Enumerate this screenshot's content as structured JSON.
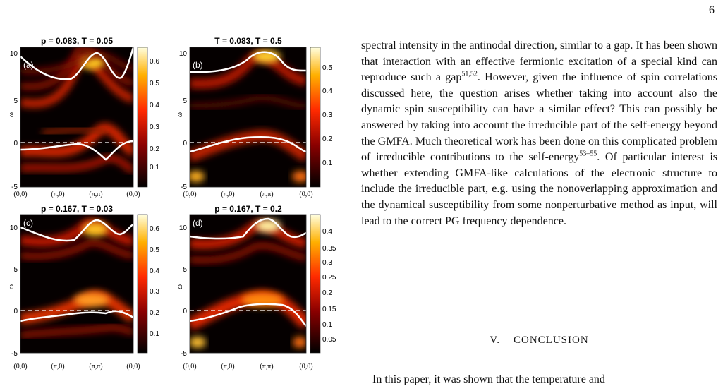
{
  "page_number": "6",
  "figure": {
    "panels": [
      {
        "id": "a",
        "title": "p = 0.083, T = 0.05",
        "label": "(a)",
        "ylabel": "ω",
        "yticks": [
          "10",
          "5",
          "0",
          "-5"
        ],
        "xticks": [
          "(0,0)",
          "(π,0)",
          "(π,π)",
          "(0,0)"
        ],
        "colorbar_ticks": [
          "0.6",
          "0.5",
          "0.4",
          "0.3",
          "0.2",
          "0.1"
        ]
      },
      {
        "id": "b",
        "title": "T = 0.083, T = 0.5",
        "label": "(b)",
        "ylabel": "ω",
        "yticks": [
          "10",
          "5",
          "0",
          "-5"
        ],
        "xticks": [
          "(0,0)",
          "(π,0)",
          "(π,π)",
          "(0,0)"
        ],
        "colorbar_ticks": [
          "0.5",
          "0.4",
          "0.3",
          "0.2",
          "0.1"
        ]
      },
      {
        "id": "c",
        "title": "p = 0.167, T = 0.03",
        "label": "(c)",
        "ylabel": "ω",
        "yticks": [
          "10",
          "5",
          "0",
          "-5"
        ],
        "xticks": [
          "(0,0)",
          "(π,0)",
          "(π,π)",
          "(0,0)"
        ],
        "colorbar_ticks": [
          "0.6",
          "0.5",
          "0.4",
          "0.3",
          "0.2",
          "0.1"
        ]
      },
      {
        "id": "d",
        "title": "p = 0.167, T = 0.2",
        "label": "(d)",
        "ylabel": "ω",
        "yticks": [
          "10",
          "5",
          "0",
          "-5"
        ],
        "xticks": [
          "(0,0)",
          "(π,0)",
          "(π,π)",
          "(0,0)"
        ],
        "colorbar_ticks": [
          "0.4",
          "0.35",
          "0.3",
          "0.25",
          "0.2",
          "0.15",
          "0.1",
          "0.05"
        ]
      }
    ]
  },
  "body": {
    "paragraph_1": "spectral intensity in the antinodal direction, similar to a gap. It has been shown that interaction with an effective fermionic excitation of a special kind can reproduce such a gap",
    "ref_1": "51,52",
    "paragraph_1b": ". However, given the influence of spin correlations discussed here, the question arises whether taking into account also the dynamic spin susceptibility can have a similar effect? This can possibly be answered by taking into account the irreducible part of the self-energy beyond the GMFA. Much theoretical work has been done on this complicated problem of irreducible contributions to the self-energy",
    "ref_2": "53–55",
    "paragraph_1c": ". Of particular interest is whether extending GMFA-like calculations of the electronic structure to include the irreducible part, e.g. using the nonoverlapping approximation and the dynamical susceptibility from some nonperturbative method as input, will lead to the correct PG frequency dependence.",
    "section_heading": "V.    CONCLUSION",
    "conclusion_start": "In this paper, it was shown that the temperature and"
  }
}
